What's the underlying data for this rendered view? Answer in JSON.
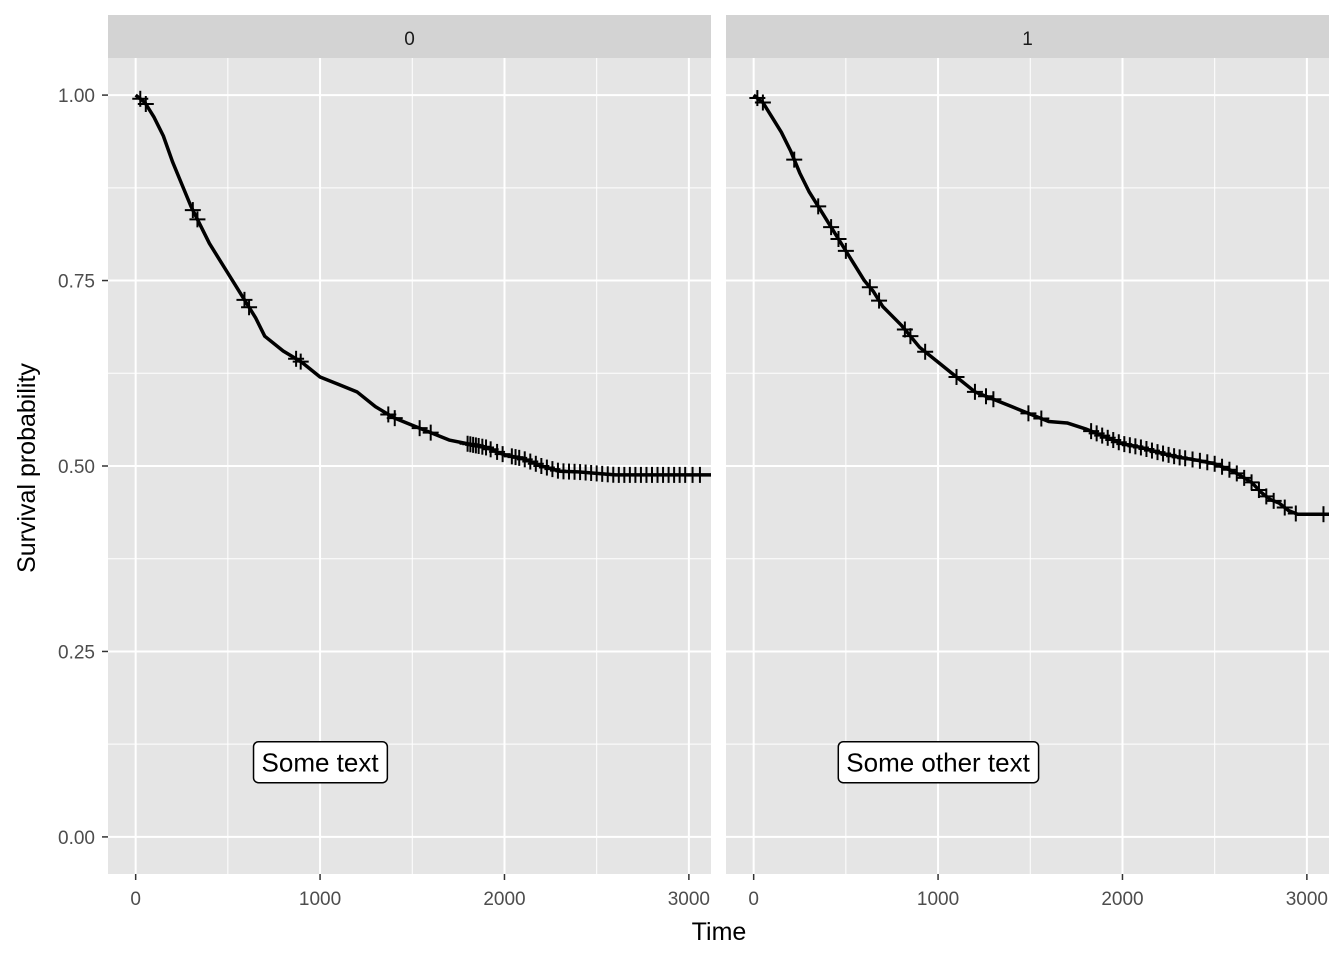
{
  "chart_data": {
    "type": "line",
    "subtype": "kaplan-meier step curve with censor marks, faceted",
    "xlabel": "Time",
    "ylabel": "Survival probability",
    "xlim": [
      -150,
      3120
    ],
    "ylim": [
      -0.05,
      1.05
    ],
    "x_ticks": [
      0,
      1000,
      2000,
      3000
    ],
    "y_ticks": [
      0.0,
      0.25,
      0.5,
      0.75,
      1.0
    ],
    "y_tick_labels": [
      "0.00",
      "0.25",
      "0.50",
      "0.75",
      "1.00"
    ],
    "grid": true,
    "colors": {
      "panel_bg": "#e5e5e5",
      "grid": "#ffffff",
      "strip_bg": "#d3d3d3",
      "line": "#000000"
    },
    "panels": [
      {
        "strip_label": "0",
        "annotation": {
          "text": "Some text",
          "x": 1000,
          "y": 0.1
        },
        "curve": [
          [
            0,
            1.0
          ],
          [
            50,
            0.99
          ],
          [
            100,
            0.97
          ],
          [
            150,
            0.945
          ],
          [
            200,
            0.91
          ],
          [
            250,
            0.88
          ],
          [
            300,
            0.85
          ],
          [
            350,
            0.825
          ],
          [
            400,
            0.8
          ],
          [
            450,
            0.78
          ],
          [
            500,
            0.76
          ],
          [
            550,
            0.74
          ],
          [
            600,
            0.72
          ],
          [
            650,
            0.7
          ],
          [
            700,
            0.675
          ],
          [
            800,
            0.655
          ],
          [
            900,
            0.64
          ],
          [
            1000,
            0.62
          ],
          [
            1100,
            0.61
          ],
          [
            1200,
            0.6
          ],
          [
            1300,
            0.58
          ],
          [
            1400,
            0.565
          ],
          [
            1500,
            0.555
          ],
          [
            1600,
            0.545
          ],
          [
            1700,
            0.535
          ],
          [
            1800,
            0.53
          ],
          [
            1900,
            0.525
          ],
          [
            2000,
            0.515
          ],
          [
            2100,
            0.51
          ],
          [
            2200,
            0.5
          ],
          [
            2300,
            0.493
          ],
          [
            2400,
            0.492
          ],
          [
            2500,
            0.49
          ],
          [
            2600,
            0.488
          ],
          [
            3120,
            0.488
          ]
        ],
        "censor_times": [
          25,
          55,
          310,
          335,
          590,
          615,
          870,
          895,
          1370,
          1405,
          1540,
          1600,
          1800,
          1815,
          1830,
          1845,
          1860,
          1880,
          1900,
          1925,
          1960,
          1990,
          2040,
          2060,
          2080,
          2110,
          2140,
          2170,
          2200,
          2230,
          2260,
          2290,
          2320,
          2350,
          2380,
          2410,
          2440,
          2470,
          2500,
          2530,
          2560,
          2590,
          2620,
          2650,
          2680,
          2710,
          2740,
          2770,
          2800,
          2830,
          2860,
          2890,
          2920,
          2950,
          2980,
          3020,
          3060
        ]
      },
      {
        "strip_label": "1",
        "annotation": {
          "text": "Some other text",
          "x": 1000,
          "y": 0.1
        },
        "curve": [
          [
            0,
            1.0
          ],
          [
            50,
            0.99
          ],
          [
            100,
            0.97
          ],
          [
            150,
            0.95
          ],
          [
            200,
            0.925
          ],
          [
            250,
            0.895
          ],
          [
            300,
            0.87
          ],
          [
            350,
            0.85
          ],
          [
            400,
            0.83
          ],
          [
            450,
            0.81
          ],
          [
            500,
            0.79
          ],
          [
            550,
            0.77
          ],
          [
            600,
            0.75
          ],
          [
            650,
            0.735
          ],
          [
            700,
            0.715
          ],
          [
            800,
            0.69
          ],
          [
            900,
            0.66
          ],
          [
            1000,
            0.64
          ],
          [
            1100,
            0.62
          ],
          [
            1200,
            0.6
          ],
          [
            1300,
            0.59
          ],
          [
            1400,
            0.58
          ],
          [
            1500,
            0.57
          ],
          [
            1600,
            0.56
          ],
          [
            1700,
            0.558
          ],
          [
            1800,
            0.55
          ],
          [
            1900,
            0.54
          ],
          [
            2000,
            0.53
          ],
          [
            2100,
            0.525
          ],
          [
            2200,
            0.518
          ],
          [
            2300,
            0.512
          ],
          [
            2400,
            0.508
          ],
          [
            2500,
            0.503
          ],
          [
            2600,
            0.493
          ],
          [
            2700,
            0.478
          ],
          [
            2750,
            0.465
          ],
          [
            2800,
            0.455
          ],
          [
            2850,
            0.45
          ],
          [
            2900,
            0.44
          ],
          [
            2950,
            0.435
          ],
          [
            3120,
            0.435
          ]
        ],
        "censor_times": [
          20,
          50,
          220,
          350,
          420,
          460,
          500,
          630,
          680,
          820,
          850,
          930,
          1100,
          1200,
          1260,
          1300,
          1490,
          1560,
          1830,
          1860,
          1890,
          1920,
          1950,
          1980,
          2010,
          2040,
          2070,
          2100,
          2130,
          2160,
          2190,
          2220,
          2250,
          2280,
          2310,
          2340,
          2380,
          2420,
          2460,
          2500,
          2540,
          2580,
          2620,
          2660,
          2700,
          2740,
          2780,
          2820,
          2880,
          2940,
          3090
        ]
      }
    ]
  }
}
